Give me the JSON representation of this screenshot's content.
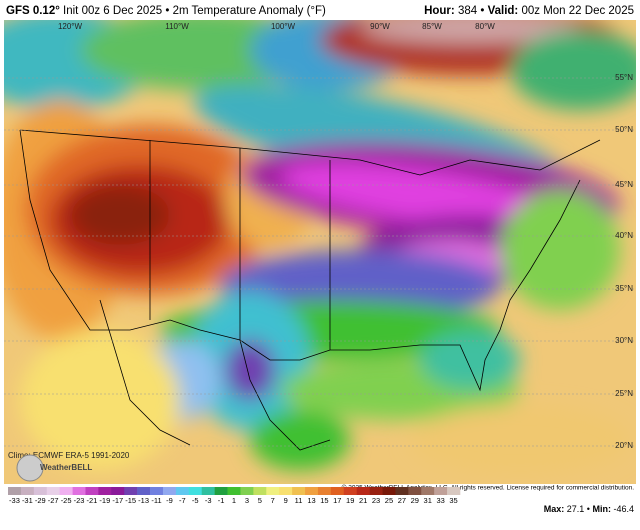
{
  "header": {
    "model": "GFS 0.12°",
    "init": "Init 00z 6 Dec 2025",
    "separator": "•",
    "field": "2m Temperature Anomaly (°F)",
    "hour_label": "Hour:",
    "hour": "384",
    "valid_label": "Valid:",
    "valid": "00z Mon 22 Dec 2025"
  },
  "map": {
    "longitudes": [
      "120°W",
      "110°W",
      "100°W",
      "90°W",
      "85°W",
      "80°W"
    ],
    "latitudes": [
      "55°N",
      "50°N",
      "45°N",
      "40°N",
      "35°N",
      "30°N",
      "25°N",
      "20°N"
    ],
    "climo": "Climo: ECMWF ERA-5 1991-2020",
    "logo": "WeatherBELL",
    "copyright": "© 2025 WeatherBELL Analytics, LLC. All rights reserved. License required for commercial distribution."
  },
  "legend": {
    "ticks": [
      -33,
      -31,
      -29,
      -27,
      -25,
      -23,
      -21,
      -19,
      -17,
      -15,
      -13,
      -11,
      -9,
      -7,
      -5,
      -3,
      -1,
      1,
      3,
      5,
      7,
      9,
      11,
      13,
      15,
      17,
      19,
      21,
      23,
      25,
      27,
      29,
      31,
      33,
      35
    ],
    "colors": [
      "#b0a0a8",
      "#c8b0c0",
      "#d8c0d8",
      "#e8d0e8",
      "#f0b0f0",
      "#e070e0",
      "#c040c0",
      "#a020a0",
      "#8a1a9a",
      "#7040b0",
      "#6060c8",
      "#7080e0",
      "#90a8f0",
      "#60c8f0",
      "#40e0e0",
      "#30c0a0",
      "#20a040",
      "#40c030",
      "#80d050",
      "#c0e060",
      "#f0f080",
      "#f8e070",
      "#f0c050",
      "#f0a040",
      "#e88030",
      "#e06020",
      "#d04020",
      "#b82818",
      "#982010",
      "#781808",
      "#603020",
      "#805040",
      "#a07868",
      "#c0a098",
      "#d8c8c0"
    ]
  },
  "stats": {
    "max_label": "Max:",
    "max": "27.1",
    "separator": "•",
    "min_label": "Min:",
    "min": "-46.4"
  }
}
